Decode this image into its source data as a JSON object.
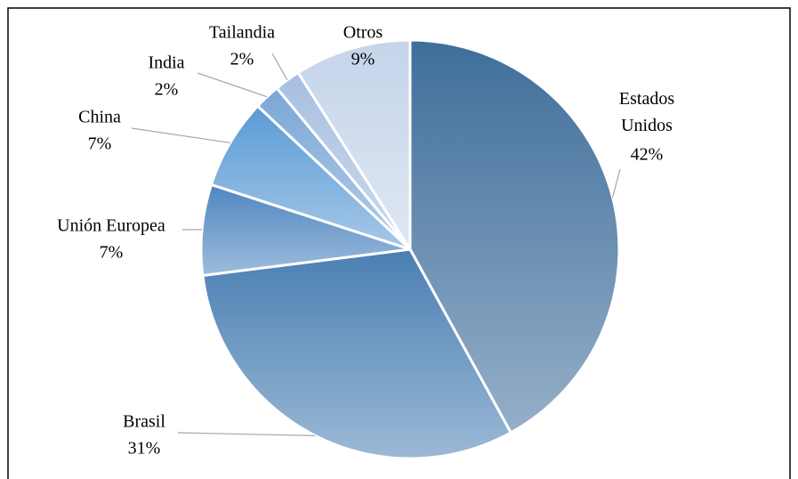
{
  "chart_data": {
    "type": "pie",
    "categories": [
      "Estados Unidos",
      "Brasil",
      "Unión Europea",
      "China",
      "India",
      "Tailandia",
      "Otros"
    ],
    "values": [
      42,
      31,
      7,
      7,
      2,
      2,
      9
    ],
    "value_labels": [
      "42%",
      "31%",
      "7%",
      "7%",
      "2%",
      "2%",
      "9%"
    ],
    "colors": [
      "#3f6e9b",
      "#4a7fb3",
      "#4f86c0",
      "#5b9bd5",
      "#7aa6d6",
      "#a6bfe0",
      "#c5d4ea"
    ]
  }
}
